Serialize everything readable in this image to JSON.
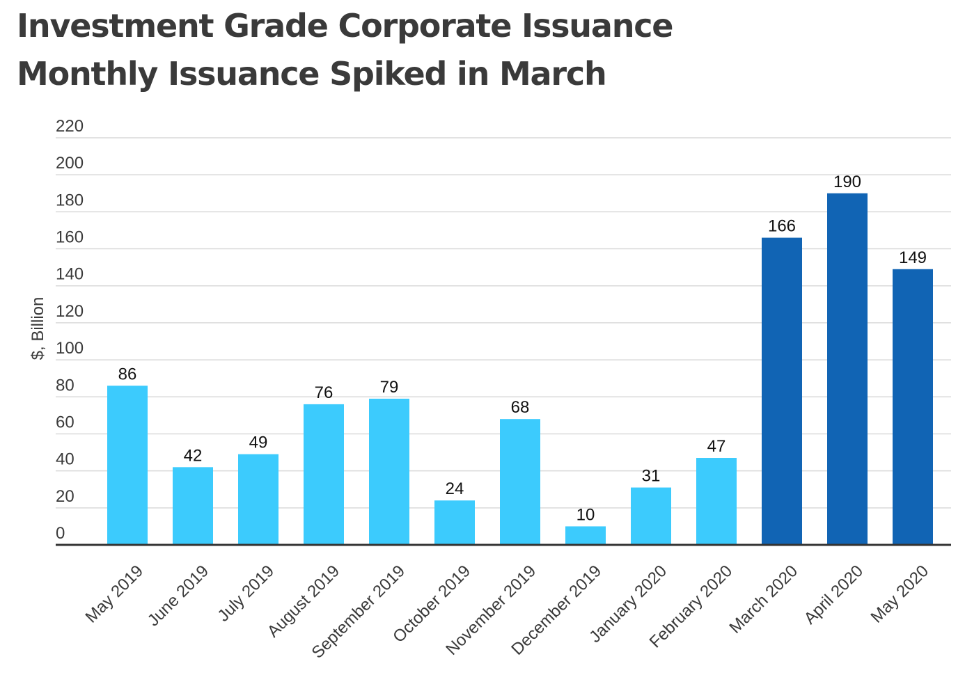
{
  "title": "Investment Grade Corporate Issuance",
  "subtitle": "Monthly Issuance Spiked in March",
  "colors": {
    "light_bar": "#3ccbfd",
    "dark_bar": "#1164b4",
    "grid": "#d9d9d9",
    "axis": "#333333",
    "title": "#3a3a3a"
  },
  "chart_data": {
    "type": "bar",
    "title": "Investment Grade Corporate Issuance",
    "subtitle": "Monthly Issuance Spiked in March",
    "xlabel": "",
    "ylabel": "$, Billion",
    "ylim": [
      0,
      220
    ],
    "yticks": [
      0,
      20,
      40,
      60,
      80,
      100,
      120,
      140,
      160,
      180,
      200,
      220
    ],
    "grid": true,
    "legend": "none",
    "categories": [
      "May 2019",
      "June 2019",
      "July 2019",
      "August 2019",
      "September 2019",
      "October 2019",
      "November 2019",
      "December 2019",
      "January 2020",
      "February 2020",
      "March 2020",
      "April 2020",
      "May 2020"
    ],
    "values": [
      86,
      42,
      49,
      76,
      79,
      24,
      68,
      10,
      31,
      47,
      166,
      190,
      149
    ],
    "bar_colors": [
      "#3ccbfd",
      "#3ccbfd",
      "#3ccbfd",
      "#3ccbfd",
      "#3ccbfd",
      "#3ccbfd",
      "#3ccbfd",
      "#3ccbfd",
      "#3ccbfd",
      "#3ccbfd",
      "#1164b4",
      "#1164b4",
      "#1164b4"
    ]
  }
}
